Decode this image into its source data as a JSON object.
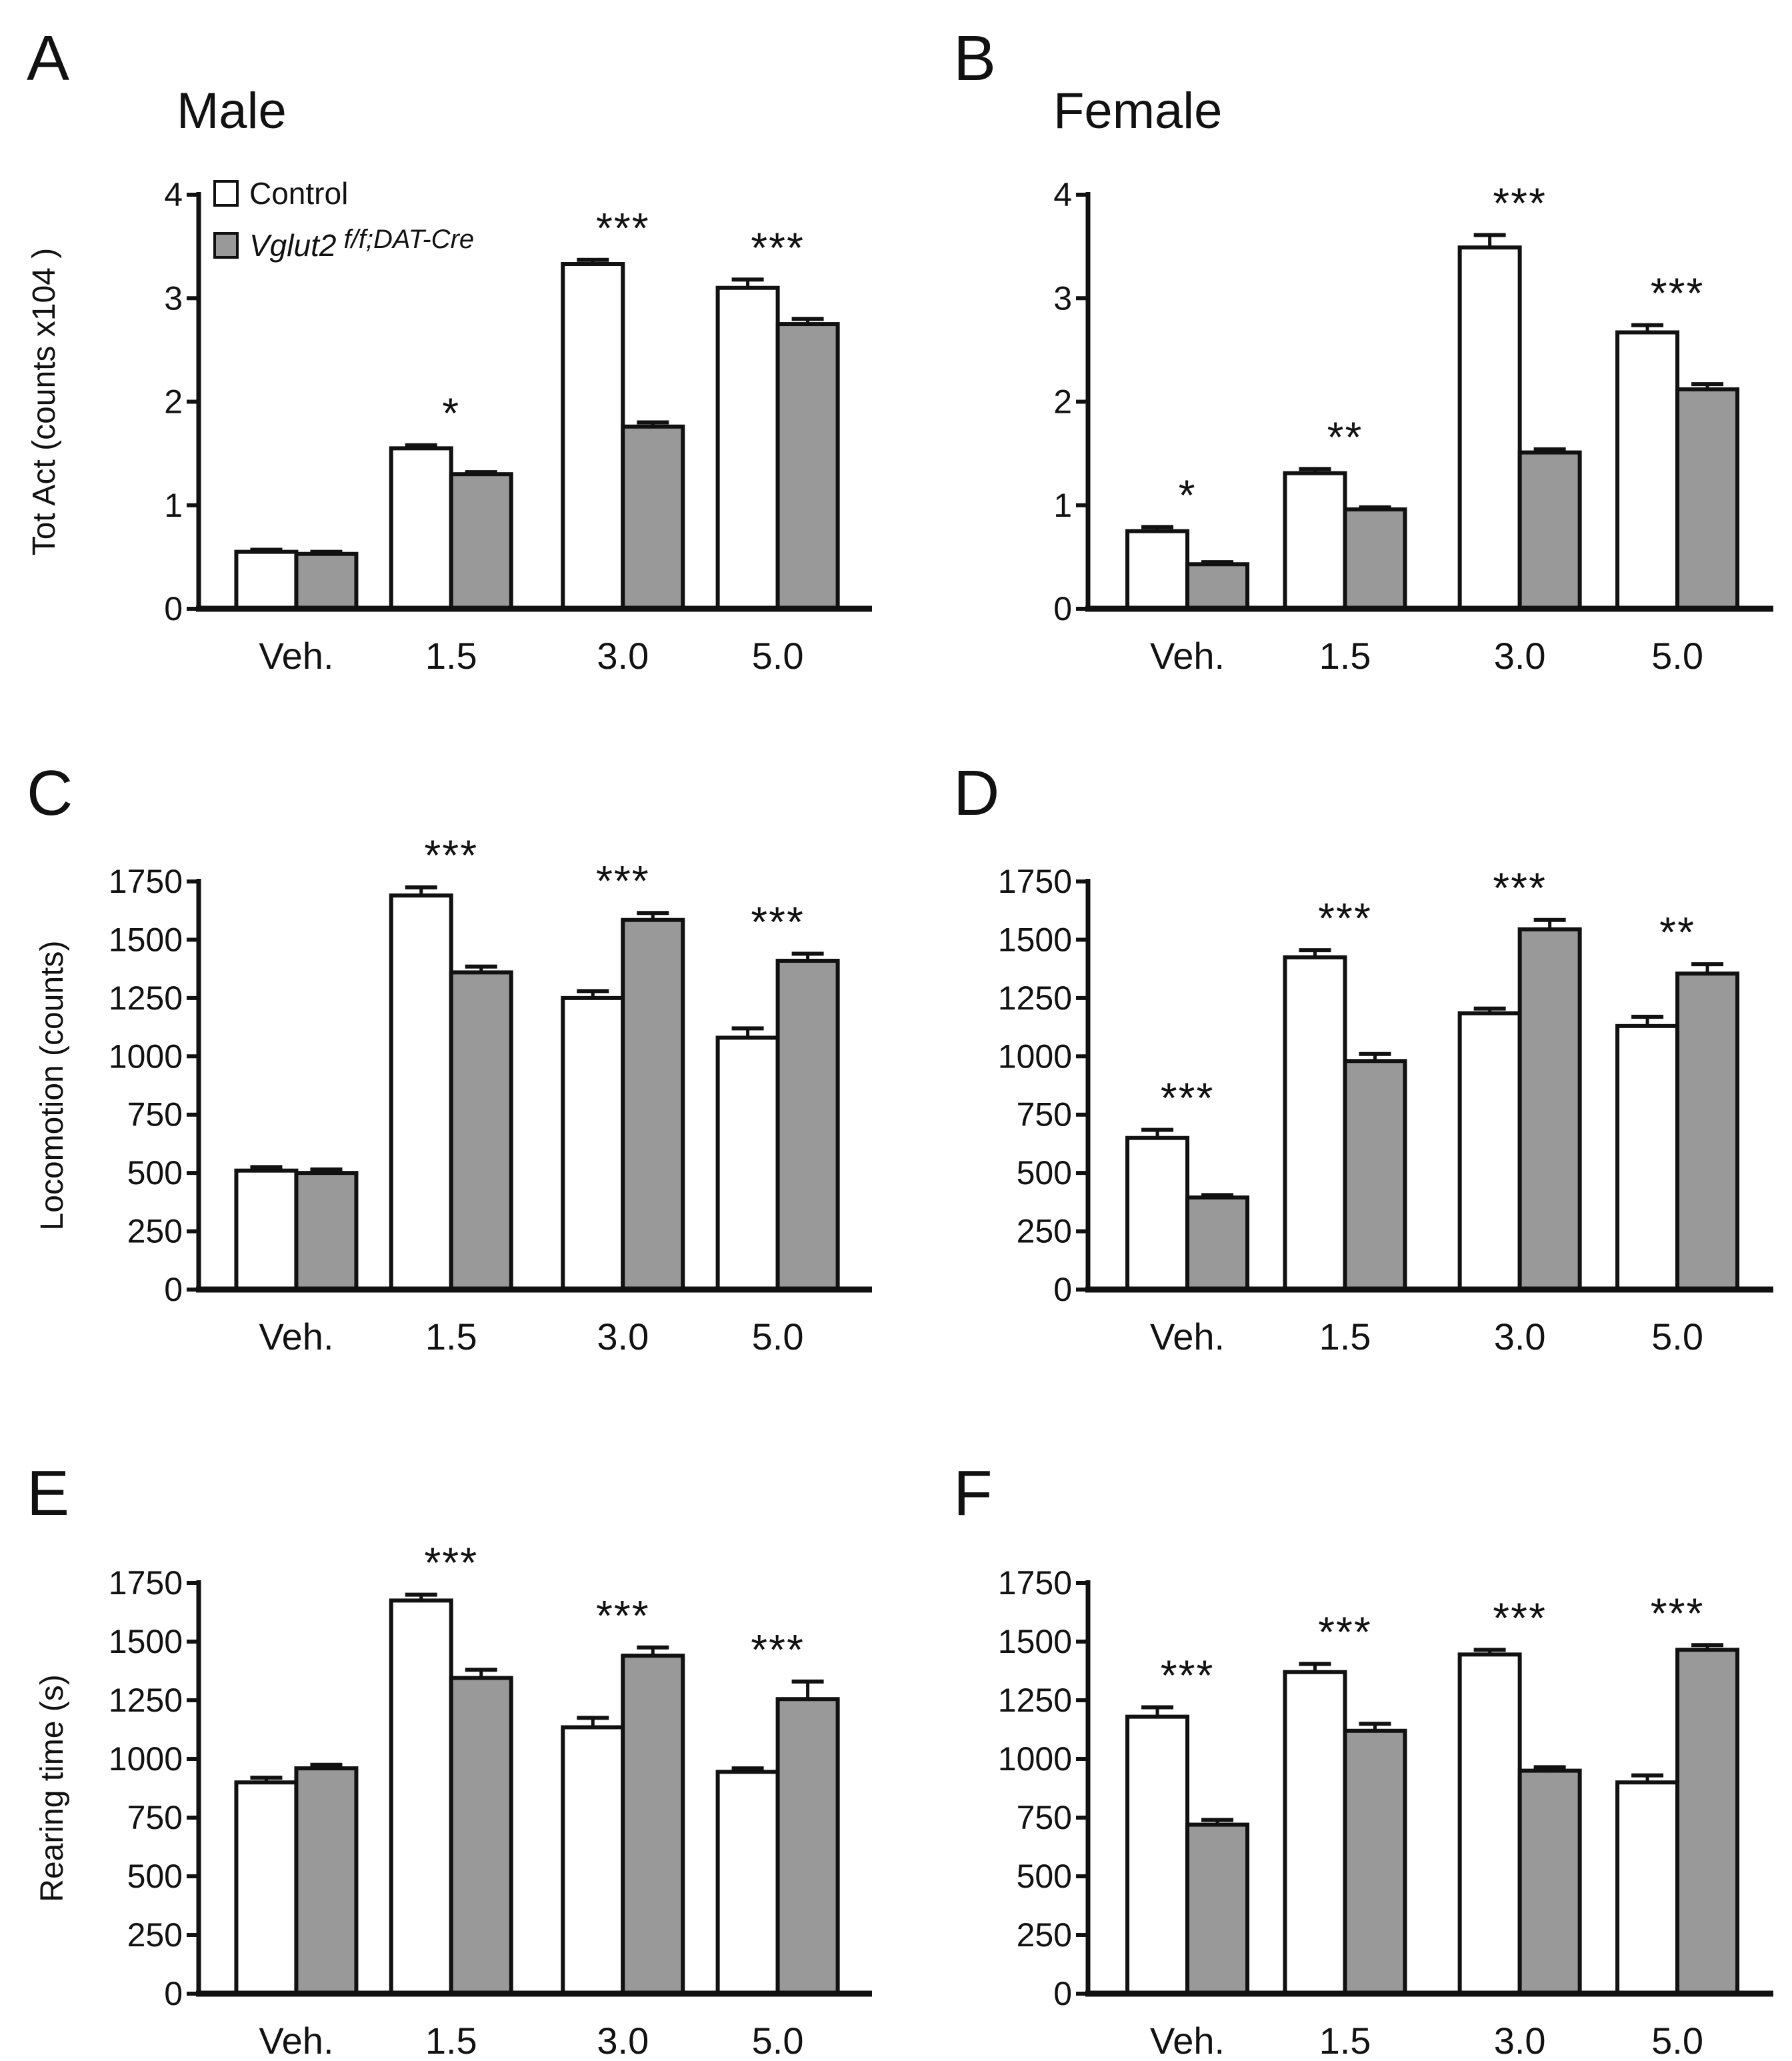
{
  "figure": {
    "legend": {
      "entries": [
        {
          "label": "Control",
          "color": "#ffffff"
        },
        {
          "label_main": "Vglut2",
          "label_sup": " f/f;DAT-Cre",
          "color": "#999999"
        }
      ]
    }
  },
  "chart_data": [
    {
      "panel": "A",
      "title": "Male",
      "type": "bar",
      "ylabel": "Tot Act (counts x104 )",
      "ylim": [
        0,
        4
      ],
      "yticks": [
        "0",
        "1",
        "2",
        "3",
        "4"
      ],
      "categories": [
        "Veh.",
        "1.5",
        "3.0",
        "5.0"
      ],
      "series": [
        {
          "name": "Control",
          "values": [
            0.55,
            1.55,
            3.33,
            3.1
          ],
          "errors": [
            0.02,
            0.03,
            0.04,
            0.08
          ]
        },
        {
          "name": "Vglut2 f/f;DAT-Cre",
          "values": [
            0.53,
            1.3,
            1.76,
            2.75
          ],
          "errors": [
            0.02,
            0.02,
            0.04,
            0.05
          ]
        }
      ],
      "significance": [
        "",
        "*",
        "***",
        "***"
      ]
    },
    {
      "panel": "B",
      "title": "Female",
      "type": "bar",
      "ylabel": "",
      "ylim": [
        0,
        4
      ],
      "yticks": [
        "0",
        "1",
        "2",
        "3",
        "4"
      ],
      "categories": [
        "Veh.",
        "1.5",
        "3.0",
        "5.0"
      ],
      "series": [
        {
          "name": "Control",
          "values": [
            0.75,
            1.31,
            3.49,
            2.67
          ],
          "errors": [
            0.04,
            0.04,
            0.12,
            0.07
          ]
        },
        {
          "name": "Vglut2 f/f;DAT-Cre",
          "values": [
            0.43,
            0.96,
            1.51,
            2.12
          ],
          "errors": [
            0.02,
            0.02,
            0.03,
            0.05
          ]
        }
      ],
      "significance": [
        "*",
        "**",
        "***",
        "***"
      ]
    },
    {
      "panel": "C",
      "title": "",
      "type": "bar",
      "ylabel": "Locomotion (counts)",
      "ylim": [
        0,
        1750
      ],
      "yticks": [
        "0",
        "250",
        "500",
        "750",
        "1000",
        "1250",
        "1500",
        "1750"
      ],
      "categories": [
        "Veh.",
        "1.5",
        "3.0",
        "5.0"
      ],
      "series": [
        {
          "name": "Control",
          "values": [
            510,
            1690,
            1250,
            1080
          ],
          "errors": [
            15,
            35,
            30,
            40
          ]
        },
        {
          "name": "Vglut2 f/f;DAT-Cre",
          "values": [
            500,
            1360,
            1585,
            1410
          ],
          "errors": [
            15,
            25,
            30,
            30
          ]
        }
      ],
      "significance": [
        "",
        "***",
        "***",
        "***"
      ]
    },
    {
      "panel": "D",
      "title": "",
      "type": "bar",
      "ylabel": "",
      "ylim": [
        0,
        1750
      ],
      "yticks": [
        "0",
        "250",
        "500",
        "750",
        "1000",
        "1250",
        "1500",
        "1750"
      ],
      "categories": [
        "Veh.",
        "1.5",
        "3.0",
        "5.0"
      ],
      "series": [
        {
          "name": "Control",
          "values": [
            650,
            1425,
            1185,
            1130
          ],
          "errors": [
            35,
            30,
            20,
            40
          ]
        },
        {
          "name": "Vglut2 f/f;DAT-Cre",
          "values": [
            395,
            980,
            1545,
            1355
          ],
          "errors": [
            10,
            30,
            40,
            40
          ]
        }
      ],
      "significance": [
        "***",
        "***",
        "***",
        "**"
      ]
    },
    {
      "panel": "E",
      "title": "",
      "type": "bar",
      "ylabel": "Rearing time (s)",
      "ylim": [
        0,
        1750
      ],
      "yticks": [
        "0",
        "250",
        "500",
        "750",
        "1000",
        "1250",
        "1500",
        "1750"
      ],
      "categories": [
        "Veh.",
        "1.5",
        "3.0",
        "5.0"
      ],
      "series": [
        {
          "name": "Control",
          "values": [
            900,
            1675,
            1135,
            945
          ],
          "errors": [
            20,
            25,
            40,
            15
          ]
        },
        {
          "name": "Vglut2 f/f;DAT-Cre",
          "values": [
            960,
            1345,
            1440,
            1255
          ],
          "errors": [
            15,
            35,
            35,
            75
          ]
        }
      ],
      "significance": [
        "",
        "***",
        "***",
        "***"
      ]
    },
    {
      "panel": "F",
      "title": "",
      "type": "bar",
      "ylabel": "",
      "ylim": [
        0,
        1750
      ],
      "yticks": [
        "0",
        "250",
        "500",
        "750",
        "1000",
        "1250",
        "1500",
        "1750"
      ],
      "categories": [
        "Veh.",
        "1.5",
        "3.0",
        "5.0"
      ],
      "series": [
        {
          "name": "Control",
          "values": [
            1180,
            1370,
            1445,
            900
          ],
          "errors": [
            40,
            35,
            20,
            30
          ]
        },
        {
          "name": "Vglut2 f/f;DAT-Cre",
          "values": [
            720,
            1120,
            950,
            1465
          ],
          "errors": [
            20,
            30,
            15,
            20
          ]
        }
      ],
      "significance": [
        "***",
        "***",
        "***",
        "***"
      ]
    }
  ]
}
